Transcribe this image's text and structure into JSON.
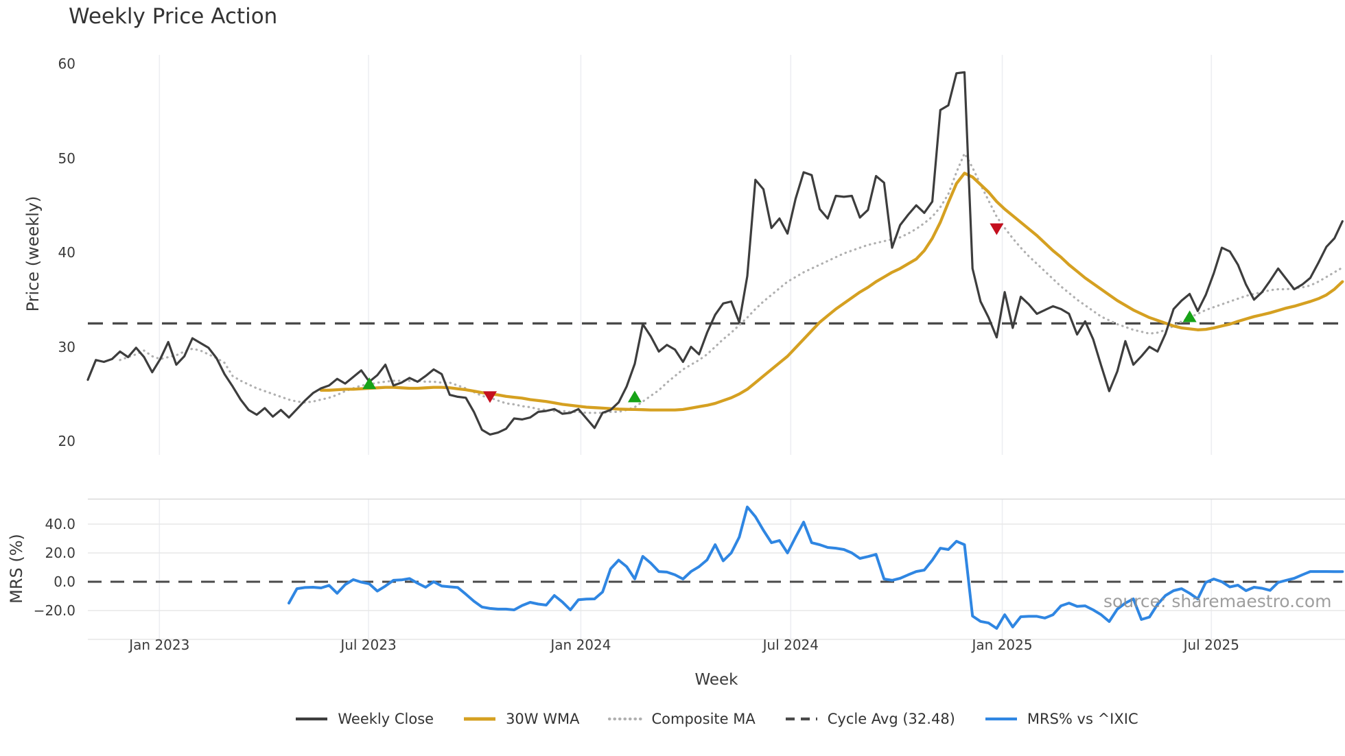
{
  "title": "Weekly Price Action",
  "watermark": "source: sharemaestro.com",
  "colors": {
    "weekly_close": "#3d3d3d",
    "wma30": "#d5a021",
    "composite": "#b0b0b0",
    "cycle_avg": "#4a4a4a",
    "mrs": "#2f86e2",
    "buy": "#17a317",
    "sell": "#c40f1e",
    "grid_vertical": "#edeef2",
    "grid_horizontal": "#e7e7e7",
    "panel_border": "#d9d9d9",
    "text": "#3a3a3a",
    "watermark_color": "#8e8e8e"
  },
  "chart_data": {
    "type": "line",
    "title": "Weekly Price Action",
    "xlabel": "Week",
    "x_tick_labels": [
      "Jan 2023",
      "Jul 2023",
      "Jan 2024",
      "Jul 2024",
      "Jan 2025",
      "Jul 2025"
    ],
    "x_tick_weeks": [
      8.9,
      34.9,
      61.3,
      87.4,
      113.7,
      139.7
    ],
    "cycle_avg": 32.48,
    "top_panel": {
      "ylabel": "Price (weekly)",
      "ylim": [
        18.8,
        61.7
      ],
      "yticks": [
        60,
        50,
        40,
        30,
        20
      ],
      "ytick_labels": [
        "60",
        "50",
        "40",
        "30",
        "20"
      ]
    },
    "bottom_panel": {
      "ylabel": "MRS (%)",
      "ylim": [
        -40,
        57.4
      ],
      "yticks": [
        40,
        20,
        0,
        -20
      ],
      "ytick_labels": [
        "40.0",
        "20.0",
        "0.0",
        "−20.0"
      ],
      "zero_line": 0
    },
    "series": [
      {
        "name": "Weekly Close",
        "axis": "top",
        "style": "solid",
        "color_key": "weekly_close",
        "width": 3.2,
        "start_week": 0,
        "values": [
          26.5,
          28.6,
          28.4,
          28.7,
          29.5,
          28.9,
          29.9,
          28.9,
          27.3,
          28.7,
          30.5,
          28.1,
          29.0,
          30.9,
          30.4,
          29.9,
          28.8,
          27.1,
          25.8,
          24.4,
          23.3,
          22.8,
          23.5,
          22.6,
          23.3,
          22.5,
          23.4,
          24.3,
          25.1,
          25.6,
          25.9,
          26.6,
          26.1,
          26.8,
          27.5,
          26.3,
          27.0,
          28.1,
          25.9,
          26.2,
          26.7,
          26.3,
          26.9,
          27.6,
          27.1,
          24.9,
          24.7,
          24.6,
          23.1,
          21.2,
          20.7,
          20.9,
          21.3,
          22.4,
          22.3,
          22.5,
          23.1,
          23.2,
          23.4,
          22.9,
          23.0,
          23.4,
          22.4,
          21.4,
          23.0,
          23.3,
          24.1,
          25.8,
          28.2,
          32.4,
          31.1,
          29.5,
          30.2,
          29.7,
          28.4,
          30.0,
          29.2,
          31.5,
          33.4,
          34.6,
          34.8,
          32.6,
          37.5,
          47.7,
          46.7,
          42.6,
          43.6,
          42.0,
          45.7,
          48.5,
          48.2,
          44.6,
          43.6,
          46.0,
          45.9,
          46.0,
          43.7,
          44.5,
          48.1,
          47.4,
          40.5,
          42.9,
          44.0,
          45.0,
          44.2,
          45.4,
          55.1,
          55.6,
          59.0,
          59.1,
          38.3,
          34.8,
          33.1,
          31.0,
          35.8,
          32.0,
          35.3,
          34.5,
          33.5,
          33.9,
          34.3,
          34.0,
          33.5,
          31.3,
          32.7,
          30.8,
          28.0,
          25.3,
          27.4,
          30.6,
          28.1,
          29.0,
          30.0,
          29.5,
          31.4,
          34.0,
          34.9,
          35.6,
          33.8,
          35.5,
          37.8,
          40.5,
          40.1,
          38.7,
          36.6,
          35.0,
          35.8,
          37.0,
          38.3,
          37.2,
          36.1,
          36.6,
          37.3,
          38.9,
          40.6,
          41.5,
          43.3
        ]
      },
      {
        "name": "30W WMA",
        "axis": "top",
        "style": "solid",
        "color_key": "wma30",
        "width": 4.3,
        "start_week": 29,
        "values": [
          25.4,
          25.4,
          25.45,
          25.5,
          25.5,
          25.55,
          25.6,
          25.65,
          25.7,
          25.7,
          25.65,
          25.6,
          25.6,
          25.65,
          25.7,
          25.7,
          25.65,
          25.55,
          25.45,
          25.3,
          25.15,
          25.0,
          24.9,
          24.75,
          24.65,
          24.55,
          24.4,
          24.3,
          24.2,
          24.05,
          23.9,
          23.8,
          23.7,
          23.6,
          23.55,
          23.5,
          23.45,
          23.4,
          23.37,
          23.35,
          23.33,
          23.3,
          23.3,
          23.3,
          23.3,
          23.35,
          23.5,
          23.65,
          23.8,
          24.0,
          24.3,
          24.6,
          25.0,
          25.5,
          26.2,
          26.9,
          27.6,
          28.3,
          29.0,
          29.9,
          30.8,
          31.7,
          32.6,
          33.3,
          34.0,
          34.6,
          35.2,
          35.8,
          36.3,
          36.9,
          37.4,
          37.9,
          38.3,
          38.8,
          39.3,
          40.2,
          41.5,
          43.2,
          45.3,
          47.3,
          48.4,
          48.0,
          47.2,
          46.4,
          45.4,
          44.6,
          43.9,
          43.2,
          42.5,
          41.8,
          41.0,
          40.2,
          39.5,
          38.7,
          38.0,
          37.3,
          36.7,
          36.1,
          35.5,
          34.9,
          34.4,
          33.9,
          33.5,
          33.1,
          32.8,
          32.5,
          32.2,
          32.0,
          31.9,
          31.8,
          31.85,
          32.0,
          32.2,
          32.4,
          32.7,
          32.95,
          33.2,
          33.4,
          33.6,
          33.85,
          34.1,
          34.3,
          34.55,
          34.8,
          35.1,
          35.5,
          36.1,
          36.9
        ]
      },
      {
        "name": "Composite MA",
        "axis": "top",
        "style": "dotted",
        "color_key": "composite",
        "width": 3.2,
        "start_week": 4,
        "values": [
          28.6,
          28.9,
          29.2,
          29.6,
          29.0,
          28.7,
          28.9,
          29.1,
          29.5,
          29.8,
          29.6,
          29.2,
          28.8,
          28.3,
          26.9,
          26.4,
          26.0,
          25.6,
          25.3,
          25.0,
          24.7,
          24.4,
          24.2,
          24.1,
          24.2,
          24.4,
          24.6,
          24.9,
          25.3,
          25.6,
          25.9,
          26.0,
          26.2,
          26.3,
          26.4,
          26.4,
          26.4,
          26.4,
          26.3,
          26.3,
          26.2,
          26.2,
          25.9,
          25.6,
          25.2,
          24.8,
          24.6,
          24.3,
          24.0,
          23.9,
          23.7,
          23.6,
          23.4,
          23.3,
          23.2,
          23.2,
          23.1,
          23.1,
          23.0,
          23.0,
          23.0,
          23.1,
          23.1,
          23.3,
          23.6,
          24.2,
          24.8,
          25.4,
          26.2,
          26.9,
          27.6,
          28.1,
          28.6,
          29.2,
          30.0,
          30.8,
          31.5,
          32.3,
          33.1,
          34.0,
          34.8,
          35.5,
          36.2,
          36.9,
          37.4,
          37.9,
          38.3,
          38.7,
          39.1,
          39.5,
          39.9,
          40.2,
          40.5,
          40.8,
          41.0,
          41.2,
          41.4,
          41.6,
          42.0,
          42.5,
          43.1,
          43.8,
          44.8,
          46.2,
          48.5,
          50.5,
          49.0,
          47.2,
          45.5,
          43.8,
          42.6,
          41.5,
          40.5,
          39.6,
          38.8,
          38.0,
          37.2,
          36.4,
          35.7,
          35.0,
          34.4,
          33.8,
          33.2,
          32.8,
          32.4,
          32.1,
          31.8,
          31.6,
          31.4,
          31.5,
          31.8,
          32.2,
          32.7,
          33.1,
          33.5,
          33.9,
          34.2,
          34.5,
          34.8,
          35.1,
          35.4,
          35.6,
          35.8,
          36.0,
          36.1,
          36.1,
          36.2,
          36.3,
          36.5,
          36.9,
          37.4,
          37.9,
          38.4
        ]
      },
      {
        "name": "MRS% vs ^IXIC",
        "axis": "bottom",
        "style": "solid",
        "color_key": "mrs",
        "width": 4.0,
        "start_week": 25,
        "values": [
          -14.8,
          -4.8,
          -4.0,
          -3.8,
          -4.3,
          -2.5,
          -8.0,
          -2.0,
          1.5,
          -0.3,
          -1.5,
          -6.5,
          -3.0,
          1.0,
          1.3,
          2.2,
          -1.0,
          -3.8,
          0.0,
          -3.0,
          -3.5,
          -4.0,
          -8.6,
          -13.5,
          -17.5,
          -18.5,
          -19.0,
          -19.0,
          -19.5,
          -16.5,
          -14.3,
          -15.5,
          -16.2,
          -9.5,
          -14.0,
          -19.5,
          -12.5,
          -12.0,
          -11.9,
          -7.1,
          9.0,
          15.0,
          10.5,
          2.0,
          17.6,
          12.9,
          7.1,
          6.7,
          4.8,
          1.9,
          7.1,
          10.5,
          15.2,
          25.7,
          14.5,
          20.0,
          31.0,
          51.9,
          45.2,
          35.7,
          27.1,
          28.6,
          20.0,
          31.0,
          41.4,
          27.1,
          25.7,
          23.8,
          23.3,
          22.4,
          20.0,
          16.2,
          17.5,
          19.0,
          1.9,
          1.0,
          2.4,
          4.8,
          7.1,
          8.1,
          15.0,
          23.3,
          22.4,
          28.1,
          25.7,
          -23.8,
          -27.5,
          -28.6,
          -32.4,
          -22.9,
          -31.4,
          -24.3,
          -24.0,
          -24.0,
          -25.2,
          -22.9,
          -16.7,
          -14.8,
          -17.1,
          -16.7,
          -19.5,
          -22.9,
          -27.6,
          -19.0,
          -14.8,
          -11.9,
          -26.2,
          -24.5,
          -15.7,
          -9.5,
          -6.2,
          -4.8,
          -8.0,
          -11.9,
          -0.5,
          1.9,
          0.0,
          -3.6,
          -2.4,
          -6.2,
          -3.8,
          -4.5,
          -6.0,
          -0.5,
          1.0,
          2.4,
          4.8,
          7.1,
          7.1,
          7.1,
          7.0,
          7.0
        ]
      }
    ],
    "markers": {
      "buy": [
        {
          "week": 35,
          "value": 26.1
        },
        {
          "week": 68,
          "value": 24.7
        },
        {
          "week": 137,
          "value": 33.2
        }
      ],
      "sell": [
        {
          "week": 50,
          "value": 24.7
        },
        {
          "week": 113,
          "value": 42.5
        }
      ]
    },
    "legend": [
      {
        "label": "Weekly Close",
        "swatch": "solid",
        "color_key": "weekly_close"
      },
      {
        "label": "30W WMA",
        "swatch": "solid",
        "color_key": "wma30"
      },
      {
        "label": "Composite MA",
        "swatch": "dotted",
        "color_key": "composite"
      },
      {
        "label": "Cycle Avg (32.48)",
        "swatch": "dashed",
        "color_key": "cycle_avg"
      },
      {
        "label": "MRS% vs ^IXIC",
        "swatch": "solid",
        "color_key": "mrs"
      }
    ],
    "legend_position": "bottom-center",
    "grid": "vertical-only-top, horizontal+vertical-bottom"
  }
}
